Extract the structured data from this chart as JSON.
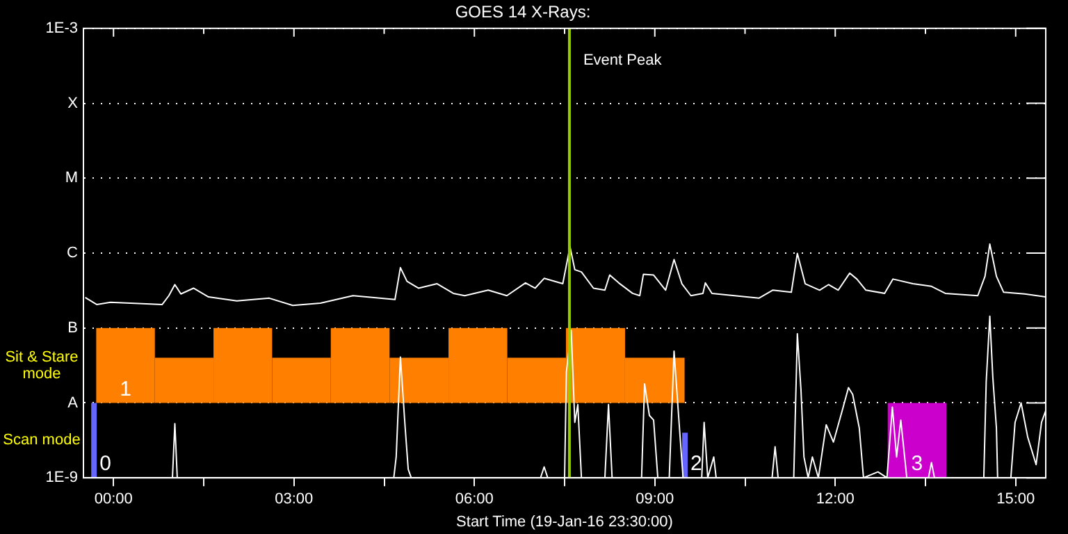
{
  "chart_data": {
    "type": "line",
    "title": "GOES 14 X-Rays:",
    "xlabel": "Start Time (19-Jan-16 23:30:00)",
    "xlim": [
      -0.5,
      15.5
    ],
    "xticks": [
      {
        "value": 0,
        "label": "00:00"
      },
      {
        "value": 1.5,
        "label": null
      },
      {
        "value": 3,
        "label": "03:00"
      },
      {
        "value": 4.5,
        "label": null
      },
      {
        "value": 6,
        "label": "06:00"
      },
      {
        "value": 7.5,
        "label": null
      },
      {
        "value": 9,
        "label": "09:00"
      },
      {
        "value": 10.5,
        "label": null
      },
      {
        "value": 12,
        "label": "12:00"
      },
      {
        "value": 13.5,
        "label": null
      },
      {
        "value": 15,
        "label": "15:00"
      }
    ],
    "ylim": [
      1e-09,
      0.001
    ],
    "yticks": [
      {
        "value": 1e-09,
        "label": "1E-9"
      },
      {
        "value": 1e-08,
        "label": "A"
      },
      {
        "value": 1e-07,
        "label": "B"
      },
      {
        "value": 1e-06,
        "label": "C"
      },
      {
        "value": 1e-05,
        "label": "M"
      },
      {
        "value": 0.0001,
        "label": "X"
      },
      {
        "value": 0.001,
        "label": "1E-3"
      }
    ],
    "log": true,
    "grid": "y",
    "legend": false,
    "marker": "none",
    "line_style": "solid",
    "series": [
      {
        "type": "bar",
        "color": "#ff8000",
        "x": [
          0.2,
          1.175,
          2.15,
          3.125,
          4.1,
          5.08,
          6.06,
          7.035,
          8.01,
          9.0
        ],
        "base": [
          1e-08,
          1e-08,
          1e-08,
          1e-08,
          1e-08,
          1e-08,
          1e-08,
          1e-08,
          1e-08,
          1e-08
        ],
        "values": [
          9e-08,
          3e-08,
          9e-08,
          3e-08,
          9e-08,
          3e-08,
          9e-08,
          3e-08,
          9e-08,
          3e-08
        ]
      },
      {
        "type": "bar",
        "color": "#6666ff",
        "x": [
          -0.325,
          9.5
        ],
        "base": [
          1e-09,
          1e-09
        ],
        "values": [
          9e-09,
          3e-09
        ]
      },
      {
        "type": "bar",
        "color": "#cc00cc",
        "x": [
          13.36
        ],
        "base": [
          1e-09
        ],
        "values": [
          9e-09
        ]
      },
      {
        "color": "#ffffff",
        "x": [
          -0.47,
          -0.28,
          -0.05,
          0.81,
          0.92,
          1.02,
          1.12,
          1.33,
          1.58,
          2.05,
          2.59,
          2.98,
          3.44,
          3.98,
          4.68,
          4.77,
          4.88,
          5.07,
          5.38,
          5.65,
          5.84,
          6.23,
          6.54,
          6.85,
          7.01,
          7.16,
          7.47,
          7.53,
          7.59,
          7.67,
          7.78,
          7.98,
          8.17,
          8.25,
          8.4,
          8.63,
          8.75,
          8.81,
          8.98,
          9.18,
          9.32,
          9.45,
          9.6,
          9.8,
          9.84,
          9.95,
          10.73,
          10.96,
          11.27,
          11.37,
          11.5,
          11.74,
          11.89,
          12.05,
          12.24,
          12.36,
          12.51,
          12.82,
          12.96,
          13.29,
          13.6,
          13.83,
          14.37,
          14.49,
          14.57,
          14.68,
          14.8,
          15.15,
          15.5
        ],
        "values": [
          2.55e-07,
          2.06e-07,
          2.2e-07,
          2.06e-07,
          2.7e-07,
          3.8e-07,
          2.85e-07,
          3.4e-07,
          2.6e-07,
          2.3e-07,
          2.5e-07,
          2e-07,
          2.15e-07,
          2.7e-07,
          2.4e-07,
          6.4e-07,
          4.2e-07,
          3.4e-07,
          3.9e-07,
          2.9e-07,
          2.7e-07,
          3.2e-07,
          2.7e-07,
          4e-07,
          3.4e-07,
          4.6e-07,
          3.9e-07,
          6.9e-07,
          1.22e-06,
          6e-07,
          5.6e-07,
          3.4e-07,
          3.2e-07,
          5.1e-07,
          4e-07,
          2.9e-07,
          2.7e-07,
          5.2e-07,
          5.1e-07,
          3.2e-07,
          8.2e-07,
          3.9e-07,
          2.7e-07,
          2.9e-07,
          4e-07,
          2.9e-07,
          2.5e-07,
          3.2e-07,
          3e-07,
          9.9e-07,
          3.9e-07,
          3.2e-07,
          3.8e-07,
          3.2e-07,
          5.4e-07,
          4.5e-07,
          3.2e-07,
          2.9e-07,
          4.5e-07,
          3.9e-07,
          3.6e-07,
          2.9e-07,
          2.7e-07,
          4.9e-07,
          1.32e-06,
          4.9e-07,
          3e-07,
          2.85e-07,
          2.6e-07
        ]
      },
      {
        "color": "#ffffff",
        "x": [
          -0.5,
          0.98,
          1.02,
          1.06,
          4.66,
          4.7,
          4.77,
          4.85,
          4.9,
          4.95,
          7.1,
          7.16,
          7.22,
          7.5,
          7.53,
          7.61,
          7.67,
          7.72,
          7.78,
          8.17,
          8.23,
          8.29,
          8.78,
          8.83,
          8.91,
          8.98,
          9.05,
          9.24,
          9.32,
          9.41,
          9.47,
          9.78,
          9.82,
          9.88,
          9.98,
          10.02,
          10.95,
          11,
          11.05,
          11.31,
          11.37,
          11.43,
          11.48,
          11.55,
          11.62,
          11.72,
          11.85,
          11.97,
          12.12,
          12.22,
          12.29,
          12.4,
          12.47,
          12.71,
          12.86,
          12.95,
          13.02,
          13.09,
          13.19,
          13.55,
          13.6,
          13.65,
          14.47,
          14.51,
          14.57,
          14.62,
          14.68,
          14.7,
          14.92,
          14.99,
          15.09,
          15.2,
          15.34,
          15.43,
          15.5
        ],
        "values": [
          1e-09,
          1e-09,
          5.3e-09,
          1e-09,
          1e-09,
          1.9e-09,
          4.1e-08,
          4.6e-09,
          1.3e-09,
          1e-09,
          1e-09,
          1.4e-09,
          1e-09,
          1e-09,
          2.6e-08,
          9.3e-08,
          5.5e-09,
          9.5e-09,
          1e-09,
          1e-09,
          9.5e-09,
          1e-09,
          1e-09,
          1.8e-08,
          6.8e-09,
          5.9e-09,
          1e-09,
          1e-09,
          4.9e-08,
          4.6e-09,
          1e-09,
          1e-09,
          5.5e-09,
          1e-09,
          1.9e-09,
          1e-09,
          1e-09,
          2.6e-09,
          1e-09,
          1e-09,
          8.4e-08,
          1.5e-08,
          1.9e-09,
          1e-09,
          1.9e-09,
          1e-09,
          5.1e-09,
          3e-09,
          8.1e-09,
          1.6e-08,
          1.3e-08,
          4.6e-09,
          1e-09,
          1.2e-09,
          1e-09,
          8.8e-09,
          1.9e-09,
          5.9e-09,
          1e-09,
          1e-09,
          1.6e-09,
          1e-09,
          1e-09,
          1.9e-08,
          1.44e-07,
          2.2e-08,
          4.6e-09,
          1e-09,
          1e-09,
          5.5e-09,
          1e-08,
          3.5e-09,
          1.5e-09,
          5.5e-09,
          7.9e-09
        ]
      }
    ],
    "ref_lines": [
      {
        "axis": "x",
        "value": 7.58,
        "label": "Event Peak",
        "color": "#99cc00"
      }
    ],
    "annotations": [
      "Sit & Stare mode",
      "Scan mode",
      {
        "text": "1",
        "x": 0.2,
        "y": 1e-08
      },
      {
        "text": "0",
        "x": -0.325,
        "y": 1e-09
      },
      {
        "text": "2",
        "x": 9.5,
        "y": 1e-09
      },
      {
        "text": "3",
        "x": 13.36,
        "y": 1e-09
      }
    ]
  }
}
